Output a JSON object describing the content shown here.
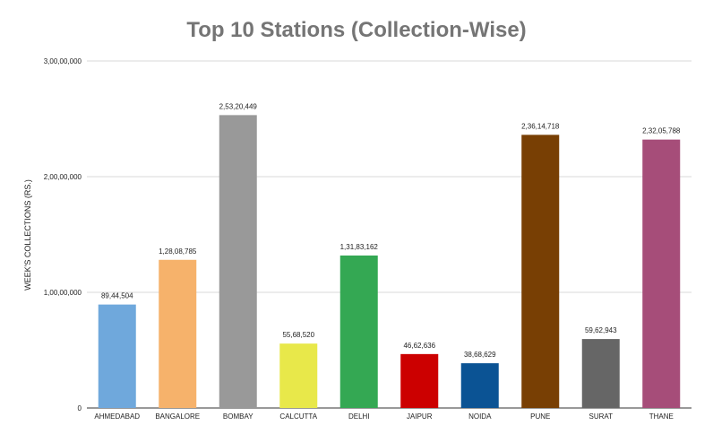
{
  "chart_data": {
    "type": "bar",
    "title": "Top 10 Stations (Collection-Wise)",
    "xlabel": "",
    "ylabel": "WEEK'S COLLECTIONS (RS.)",
    "ylim": [
      0,
      30000000
    ],
    "y_ticks": [
      {
        "value": 0,
        "label": "0"
      },
      {
        "value": 10000000,
        "label": "1,00,00,000"
      },
      {
        "value": 20000000,
        "label": "2,00,00,000"
      },
      {
        "value": 30000000,
        "label": "3,00,00,000"
      }
    ],
    "grid": true,
    "legend": "none",
    "categories": [
      "AHMEDABAD",
      "BANGALORE",
      "BOMBAY",
      "CALCUTTA",
      "DELHI",
      "JAIPUR",
      "NOIDA",
      "PUNE",
      "SURAT",
      "THANE"
    ],
    "values": [
      8944504,
      12808785,
      25320449,
      5568520,
      13183162,
      4662636,
      3868629,
      23614718,
      5962943,
      23205788
    ],
    "data_labels": [
      "89,44,504",
      "1,28,08,785",
      "2,53,20,449",
      "55,68,520",
      "1,31,83,162",
      "46,62,636",
      "38,68,629",
      "2,36,14,718",
      "59,62,943",
      "2,32,05,788"
    ],
    "colors": [
      "#6fa8dc",
      "#f6b26b",
      "#999999",
      "#e8e84a",
      "#34a853",
      "#cc0000",
      "#0b5394",
      "#783f04",
      "#666666",
      "#a64d79"
    ]
  }
}
